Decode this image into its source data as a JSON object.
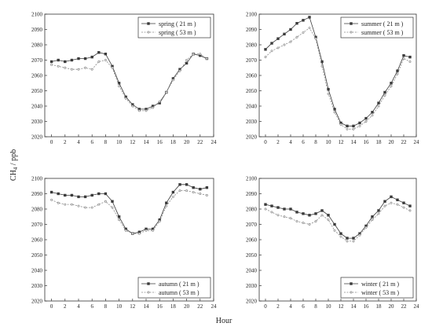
{
  "figure": {
    "ylabel_main": "CH",
    "ylabel_sub": "4",
    "ylabel_unit": " / ppb",
    "xlabel": "Hour"
  },
  "chart_data": [
    {
      "type": "line",
      "xlim": [
        -1,
        24
      ],
      "ylim": [
        2020,
        2100
      ],
      "xticks": [
        0,
        2,
        4,
        6,
        8,
        10,
        12,
        14,
        16,
        18,
        20,
        22,
        24
      ],
      "yticks": [
        2020,
        2030,
        2040,
        2050,
        2060,
        2070,
        2080,
        2090,
        2100
      ],
      "legend_position": "top-right",
      "x": [
        0,
        1,
        2,
        3,
        4,
        5,
        6,
        7,
        8,
        9,
        10,
        11,
        12,
        13,
        14,
        15,
        16,
        17,
        18,
        19,
        20,
        21,
        22,
        23
      ],
      "series": [
        {
          "name": "spring ( 21 m )",
          "values": [
            2069,
            2070,
            2069,
            2070,
            2071,
            2071,
            2072,
            2075,
            2074,
            2066,
            2055,
            2046,
            2041,
            2038,
            2038,
            2040,
            2042,
            2049,
            2058,
            2064,
            2068,
            2074,
            2073,
            2071
          ]
        },
        {
          "name": "spring ( 53 m )",
          "values": [
            2067,
            2066,
            2065,
            2064,
            2064,
            2065,
            2064,
            2069,
            2070,
            2065,
            2053,
            2045,
            2040,
            2037,
            2037,
            2039,
            2043,
            2049,
            2057,
            2063,
            2070,
            2074,
            2074,
            2071
          ]
        }
      ]
    },
    {
      "type": "line",
      "xlim": [
        -1,
        24
      ],
      "ylim": [
        2020,
        2100
      ],
      "xticks": [
        0,
        2,
        4,
        6,
        8,
        10,
        12,
        14,
        16,
        18,
        20,
        22,
        24
      ],
      "yticks": [
        2020,
        2030,
        2040,
        2050,
        2060,
        2070,
        2080,
        2090,
        2100
      ],
      "legend_position": "top-right",
      "x": [
        0,
        1,
        2,
        3,
        4,
        5,
        6,
        7,
        8,
        9,
        10,
        11,
        12,
        13,
        14,
        15,
        16,
        17,
        18,
        19,
        20,
        21,
        22,
        23
      ],
      "series": [
        {
          "name": "summer ( 21 m )",
          "values": [
            2077,
            2081,
            2084,
            2087,
            2090,
            2094,
            2096,
            2098,
            2085,
            2069,
            2051,
            2038,
            2029,
            2027,
            2027,
            2029,
            2032,
            2036,
            2042,
            2049,
            2055,
            2063,
            2073,
            2072
          ]
        },
        {
          "name": "summer ( 53 m )",
          "values": [
            2072,
            2076,
            2078,
            2080,
            2082,
            2085,
            2088,
            2091,
            2084,
            2066,
            2048,
            2036,
            2028,
            2025,
            2025,
            2027,
            2030,
            2034,
            2040,
            2047,
            2053,
            2061,
            2071,
            2069
          ]
        }
      ]
    },
    {
      "type": "line",
      "xlim": [
        -1,
        24
      ],
      "ylim": [
        2020,
        2100
      ],
      "xticks": [
        0,
        2,
        4,
        6,
        8,
        10,
        12,
        14,
        16,
        18,
        20,
        22,
        24
      ],
      "yticks": [
        2020,
        2030,
        2040,
        2050,
        2060,
        2070,
        2080,
        2090,
        2100
      ],
      "legend_position": "bottom-right",
      "x": [
        0,
        1,
        2,
        3,
        4,
        5,
        6,
        7,
        8,
        9,
        10,
        11,
        12,
        13,
        14,
        15,
        16,
        17,
        18,
        19,
        20,
        21,
        22,
        23
      ],
      "series": [
        {
          "name": "autumn ( 21 m )",
          "values": [
            2091,
            2090,
            2089,
            2089,
            2088,
            2088,
            2089,
            2090,
            2090,
            2085,
            2075,
            2067,
            2064,
            2065,
            2067,
            2067,
            2073,
            2084,
            2091,
            2096,
            2096,
            2094,
            2093,
            2094
          ]
        },
        {
          "name": "autumn ( 53 m )",
          "values": [
            2086,
            2084,
            2083,
            2083,
            2082,
            2081,
            2081,
            2083,
            2085,
            2081,
            2073,
            2066,
            2064,
            2064,
            2066,
            2066,
            2072,
            2082,
            2088,
            2092,
            2092,
            2091,
            2090,
            2089
          ]
        }
      ]
    },
    {
      "type": "line",
      "xlim": [
        -1,
        24
      ],
      "ylim": [
        2020,
        2100
      ],
      "xticks": [
        0,
        2,
        4,
        6,
        8,
        10,
        12,
        14,
        16,
        18,
        20,
        22,
        24
      ],
      "yticks": [
        2020,
        2030,
        2040,
        2050,
        2060,
        2070,
        2080,
        2090,
        2100
      ],
      "legend_position": "bottom-right",
      "x": [
        0,
        1,
        2,
        3,
        4,
        5,
        6,
        7,
        8,
        9,
        10,
        11,
        12,
        13,
        14,
        15,
        16,
        17,
        18,
        19,
        20,
        21,
        22,
        23
      ],
      "series": [
        {
          "name": "winter ( 21 m )",
          "values": [
            2083,
            2082,
            2081,
            2080,
            2080,
            2078,
            2077,
            2076,
            2077,
            2079,
            2076,
            2070,
            2064,
            2061,
            2061,
            2064,
            2069,
            2075,
            2079,
            2085,
            2088,
            2086,
            2084,
            2082
          ]
        },
        {
          "name": "winter ( 53 m )",
          "values": [
            2080,
            2078,
            2076,
            2075,
            2074,
            2072,
            2071,
            2070,
            2072,
            2076,
            2073,
            2066,
            2062,
            2059,
            2059,
            2063,
            2068,
            2073,
            2077,
            2082,
            2084,
            2083,
            2081,
            2079
          ]
        }
      ]
    }
  ]
}
